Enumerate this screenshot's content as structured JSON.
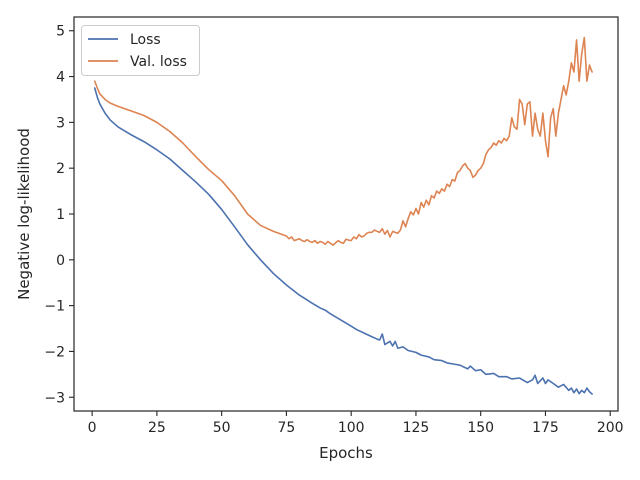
{
  "chart_data": {
    "type": "line",
    "title": "",
    "xlabel": "Epochs",
    "ylabel": "Negative log-likelihood",
    "xlim": [
      -7,
      203
    ],
    "ylim": [
      -3.3,
      5.3
    ],
    "xticks": [
      0,
      25,
      50,
      75,
      100,
      125,
      150,
      175,
      200
    ],
    "yticks": [
      -3,
      -2,
      -1,
      0,
      1,
      2,
      3,
      4,
      5
    ],
    "xtick_labels": [
      "0",
      "25",
      "50",
      "75",
      "100",
      "125",
      "150",
      "175",
      "200"
    ],
    "ytick_labels": [
      "−3",
      "−2",
      "−1",
      "0",
      "1",
      "2",
      "3",
      "4",
      "5"
    ],
    "grid": false,
    "legend_position": "top-left",
    "series": [
      {
        "name": "Loss",
        "color": "#4c72b0",
        "x": [
          1,
          2,
          3,
          5,
          7,
          10,
          15,
          20,
          25,
          30,
          35,
          40,
          45,
          50,
          55,
          60,
          65,
          70,
          75,
          80,
          85,
          88,
          90,
          92,
          95,
          98,
          100,
          102,
          105,
          108,
          110,
          111,
          112,
          113,
          115,
          116,
          117,
          118,
          120,
          122,
          125,
          127,
          130,
          132,
          135,
          137,
          140,
          142,
          145,
          146,
          148,
          150,
          152,
          155,
          157,
          160,
          162,
          165,
          168,
          170,
          171,
          172,
          174,
          175,
          176,
          178,
          180,
          182,
          184,
          185,
          186,
          187,
          188,
          189,
          190,
          191,
          192,
          193
        ],
        "y": [
          3.75,
          3.55,
          3.4,
          3.2,
          3.05,
          2.9,
          2.73,
          2.58,
          2.4,
          2.2,
          1.95,
          1.7,
          1.43,
          1.1,
          0.72,
          0.33,
          0.0,
          -0.3,
          -0.55,
          -0.77,
          -0.95,
          -1.05,
          -1.1,
          -1.18,
          -1.28,
          -1.38,
          -1.45,
          -1.52,
          -1.6,
          -1.68,
          -1.73,
          -1.75,
          -1.62,
          -1.85,
          -1.78,
          -1.88,
          -1.78,
          -1.93,
          -1.9,
          -1.98,
          -2.02,
          -2.08,
          -2.12,
          -2.18,
          -2.2,
          -2.25,
          -2.28,
          -2.3,
          -2.38,
          -2.32,
          -2.42,
          -2.4,
          -2.5,
          -2.48,
          -2.55,
          -2.55,
          -2.6,
          -2.58,
          -2.68,
          -2.62,
          -2.52,
          -2.7,
          -2.58,
          -2.7,
          -2.62,
          -2.7,
          -2.78,
          -2.72,
          -2.85,
          -2.8,
          -2.9,
          -2.82,
          -2.92,
          -2.85,
          -2.9,
          -2.8,
          -2.88,
          -2.93
        ]
      },
      {
        "name": "Val. loss",
        "color": "#dd8452",
        "x": [
          1,
          2,
          3,
          5,
          7,
          10,
          15,
          20,
          25,
          30,
          35,
          40,
          45,
          50,
          55,
          60,
          65,
          70,
          75,
          76,
          77,
          78,
          80,
          81,
          82,
          83,
          84,
          85,
          86,
          87,
          88,
          89,
          90,
          91,
          92,
          93,
          94,
          95,
          96,
          97,
          98,
          99,
          100,
          101,
          102,
          103,
          104,
          105,
          106,
          107,
          108,
          109,
          110,
          111,
          112,
          113,
          114,
          115,
          116,
          117,
          118,
          119,
          120,
          121,
          122,
          123,
          124,
          125,
          126,
          127,
          128,
          129,
          130,
          131,
          132,
          133,
          134,
          135,
          136,
          137,
          138,
          139,
          140,
          141,
          142,
          143,
          144,
          145,
          146,
          147,
          148,
          149,
          150,
          151,
          152,
          153,
          154,
          155,
          156,
          157,
          158,
          159,
          160,
          161,
          162,
          163,
          164,
          165,
          166,
          167,
          168,
          169,
          170,
          171,
          172,
          173,
          174,
          175,
          176,
          177,
          178,
          179,
          180,
          181,
          182,
          183,
          184,
          185,
          186,
          187,
          188,
          189,
          190,
          191,
          192,
          193
        ],
        "y": [
          3.9,
          3.75,
          3.62,
          3.5,
          3.42,
          3.35,
          3.25,
          3.15,
          3.0,
          2.8,
          2.55,
          2.25,
          1.97,
          1.73,
          1.4,
          1.0,
          0.75,
          0.62,
          0.52,
          0.46,
          0.5,
          0.42,
          0.46,
          0.42,
          0.4,
          0.44,
          0.4,
          0.38,
          0.42,
          0.36,
          0.4,
          0.38,
          0.34,
          0.4,
          0.36,
          0.32,
          0.37,
          0.42,
          0.38,
          0.36,
          0.45,
          0.43,
          0.42,
          0.5,
          0.46,
          0.55,
          0.5,
          0.52,
          0.58,
          0.6,
          0.6,
          0.65,
          0.62,
          0.6,
          0.68,
          0.56,
          0.64,
          0.5,
          0.62,
          0.6,
          0.58,
          0.65,
          0.85,
          0.72,
          0.9,
          1.05,
          0.98,
          1.12,
          1.0,
          1.25,
          1.15,
          1.3,
          1.2,
          1.4,
          1.35,
          1.5,
          1.45,
          1.55,
          1.5,
          1.65,
          1.6,
          1.75,
          1.72,
          1.9,
          1.95,
          2.05,
          2.1,
          2.0,
          1.95,
          1.8,
          1.85,
          1.95,
          2.0,
          2.1,
          2.3,
          2.4,
          2.45,
          2.55,
          2.5,
          2.6,
          2.55,
          2.65,
          2.6,
          2.7,
          3.1,
          2.9,
          2.85,
          3.5,
          3.4,
          2.95,
          3.4,
          3.45,
          2.7,
          3.2,
          2.85,
          2.7,
          3.2,
          2.6,
          2.25,
          3.1,
          3.3,
          2.7,
          3.2,
          3.5,
          3.8,
          3.6,
          3.9,
          4.3,
          4.1,
          4.8,
          3.9,
          4.5,
          4.85,
          3.9,
          4.25,
          4.1
        ]
      }
    ]
  }
}
